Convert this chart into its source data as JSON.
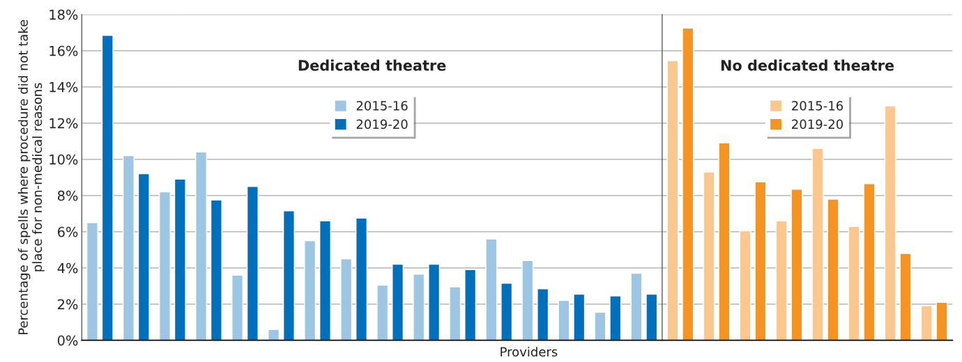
{
  "chart_data": [
    {
      "type": "bar",
      "title": "Dedicated theatre",
      "xlabel": "Providers",
      "ylabel": "Percentage of spells where procedure did not take place for non-medical reasons",
      "categories": [
        null,
        null,
        null,
        null,
        null,
        null,
        null,
        null,
        null,
        null,
        null,
        null,
        null,
        null,
        null,
        null
      ],
      "series": [
        {
          "name": "2015-16",
          "color": "#9dc6e5",
          "values": [
            6.5,
            10.2,
            8.2,
            10.4,
            3.6,
            0.6,
            5.5,
            4.5,
            3.05,
            3.65,
            2.95,
            5.6,
            4.4,
            2.2,
            1.55,
            3.7
          ]
        },
        {
          "name": "2019-20",
          "color": "#0070bc",
          "values": [
            16.85,
            9.2,
            8.9,
            7.75,
            8.5,
            7.15,
            6.6,
            6.75,
            4.2,
            4.2,
            3.9,
            3.15,
            2.85,
            2.55,
            2.45,
            2.55
          ]
        }
      ],
      "ylim": [
        0,
        18
      ],
      "yticks": [
        {
          "value": 0,
          "label": "0%"
        },
        {
          "value": 2,
          "label": "2%"
        },
        {
          "value": 4,
          "label": "4%"
        },
        {
          "value": 6,
          "label": "6%"
        },
        {
          "value": 8,
          "label": "8%"
        },
        {
          "value": 10,
          "label": "10%"
        },
        {
          "value": 12,
          "label": "12%"
        },
        {
          "value": 14,
          "label": "14%"
        },
        {
          "value": 16,
          "label": "16%"
        },
        {
          "value": 18,
          "label": "18%"
        }
      ],
      "grid": "y",
      "legend": "top"
    },
    {
      "type": "bar",
      "title": "No dedicated theatre",
      "categories": [
        null,
        null,
        null,
        null,
        null,
        null,
        null,
        null
      ],
      "series": [
        {
          "name": "2015-16",
          "color": "#fac88e",
          "values": [
            15.45,
            9.3,
            6.05,
            6.6,
            10.6,
            6.3,
            12.95,
            1.9
          ]
        },
        {
          "name": "2019-20",
          "color": "#f59420",
          "values": [
            17.25,
            10.9,
            8.75,
            8.35,
            7.8,
            8.65,
            4.8,
            2.1
          ]
        }
      ],
      "ylim": [
        0,
        18
      ],
      "yticks": [
        0,
        2,
        4,
        6,
        8,
        10,
        12,
        14,
        16,
        18
      ],
      "grid": "y",
      "legend": "top",
      "tick_labels": false
    }
  ]
}
